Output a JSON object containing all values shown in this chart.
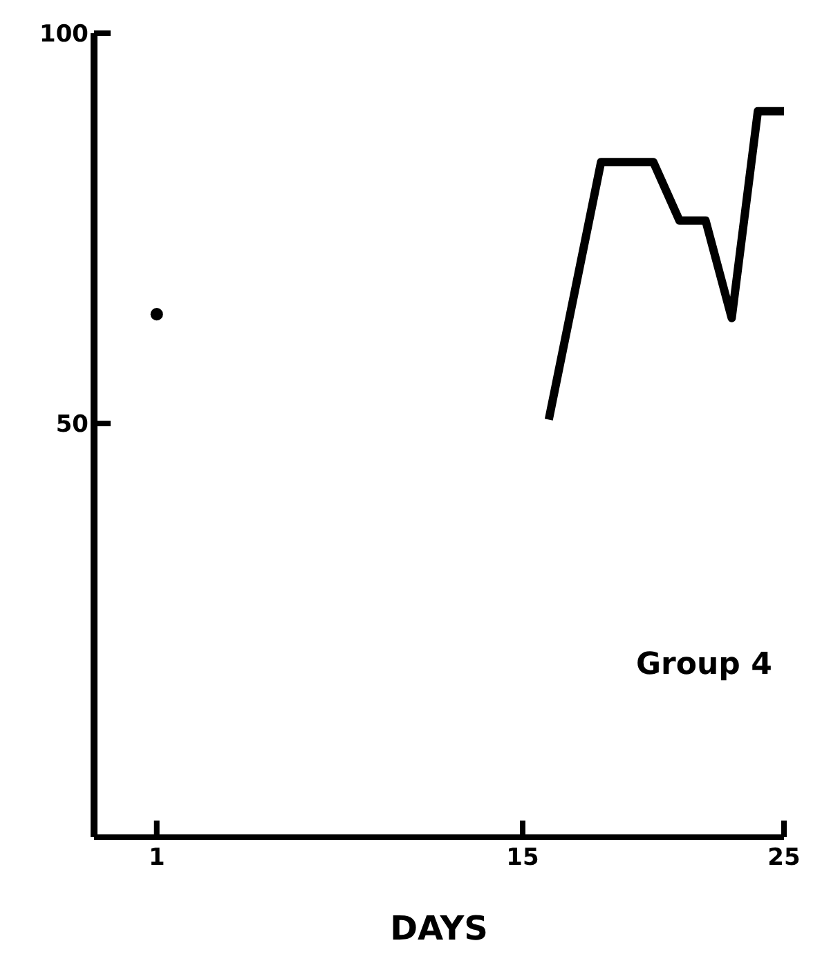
{
  "chart_data": {
    "type": "line",
    "xlabel": "DAYS",
    "xlim": [
      -1.4,
      25
    ],
    "xticks": [
      1,
      15,
      25
    ],
    "ylim": [
      -3,
      100
    ],
    "yticks": [
      50,
      100
    ],
    "series": [
      {
        "type": "scatter",
        "color": "#000000",
        "x": [
          1
        ],
        "values": [
          64
        ],
        "marker": "circle"
      },
      {
        "color": "#000000",
        "x": [
          16,
          18,
          20,
          21,
          22,
          23,
          24,
          25
        ],
        "values": [
          50.5,
          83.5,
          83.5,
          76,
          76,
          63.5,
          90,
          90
        ],
        "marker": "none"
      }
    ],
    "annotations": [
      "Group 4"
    ]
  }
}
